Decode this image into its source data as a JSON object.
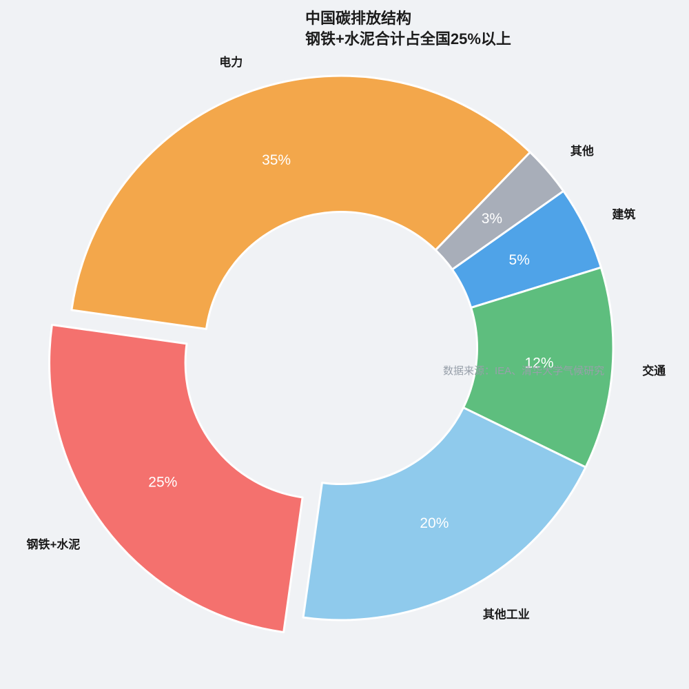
{
  "background_color": "#F0F2F5",
  "title": {
    "line1": "中国碳排放结构",
    "line2": "钢铁+水泥合计占全国25%以上"
  },
  "source_note": "数据来源：IEA、清华大学气候研究",
  "chart_data": {
    "type": "pie",
    "title": "中国碳排放结构 钢铁+水泥合计占全国25%以上",
    "donut": true,
    "hole_ratio": 0.5,
    "start_angle": 172,
    "direction": "clockwise",
    "legend": "none",
    "slices": [
      {
        "label": "电力",
        "value": 35,
        "pct_label": "35%",
        "color": "#F3A74B",
        "explode": 0
      },
      {
        "label": "其他",
        "value": 3,
        "pct_label": "3%",
        "color": "#A8AEB9",
        "explode": 0
      },
      {
        "label": "建筑",
        "value": 5,
        "pct_label": "5%",
        "color": "#4FA3E8",
        "explode": 0
      },
      {
        "label": "交通",
        "value": 12,
        "pct_label": "12%",
        "color": "#5EBE7E",
        "explode": 0
      },
      {
        "label": "其他工业",
        "value": 20,
        "pct_label": "20%",
        "color": "#8FCAEC",
        "explode": 0
      },
      {
        "label": "钢铁+水泥",
        "value": 25,
        "pct_label": "25%",
        "color": "#F4716E",
        "explode": 0.09
      }
    ]
  }
}
